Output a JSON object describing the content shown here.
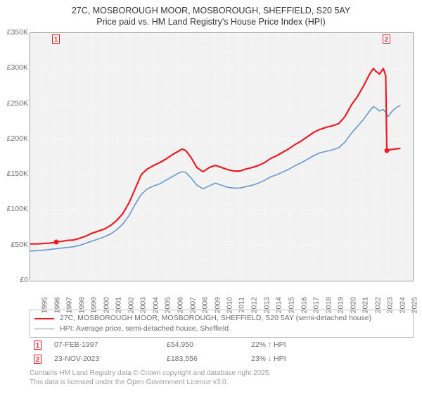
{
  "title_line1": "27C, MOSBOROUGH MOOR, MOSBOROUGH, SHEFFIELD, S20 5AY",
  "title_line2": "Price paid vs. HM Land Registry's House Price Index (HPI)",
  "chart": {
    "type": "line",
    "background_color": "#f2f2f2",
    "border_color": "#9b9b9b",
    "grid_color": "#ffffff",
    "grid_style": "dotted",
    "text_color": "#6e6e6e",
    "axis_fontsize": 10.5,
    "xlim": [
      1995,
      2026
    ],
    "ylim": [
      0,
      350000
    ],
    "y_ticks": [
      0,
      50000,
      100000,
      150000,
      200000,
      250000,
      300000,
      350000
    ],
    "y_tick_labels": [
      "£0",
      "£50K",
      "£100K",
      "£150K",
      "£200K",
      "£250K",
      "£300K",
      "£350K"
    ],
    "x_ticks": [
      1995,
      1996,
      1997,
      1998,
      1999,
      2000,
      2001,
      2002,
      2003,
      2004,
      2005,
      2006,
      2007,
      2008,
      2009,
      2010,
      2011,
      2012,
      2013,
      2014,
      2015,
      2016,
      2017,
      2018,
      2019,
      2020,
      2021,
      2022,
      2023,
      2024,
      2025,
      2026
    ],
    "series": [
      {
        "name": "price_paid",
        "color": "#ed1c24",
        "line_width": 2.2,
        "points": [
          [
            1995.0,
            52000
          ],
          [
            1995.5,
            52000
          ],
          [
            1996.0,
            52500
          ],
          [
            1996.5,
            53000
          ],
          [
            1997.0,
            54000
          ],
          [
            1997.11,
            54950
          ],
          [
            1997.5,
            55500
          ],
          [
            1998.0,
            57000
          ],
          [
            1998.5,
            57500
          ],
          [
            1999.0,
            60000
          ],
          [
            1999.5,
            63000
          ],
          [
            2000.0,
            67000
          ],
          [
            2000.5,
            70000
          ],
          [
            2001.0,
            73000
          ],
          [
            2001.5,
            78000
          ],
          [
            2002.0,
            85000
          ],
          [
            2002.5,
            95000
          ],
          [
            2003.0,
            110000
          ],
          [
            2003.5,
            130000
          ],
          [
            2004.0,
            150000
          ],
          [
            2004.5,
            158000
          ],
          [
            2005.0,
            163000
          ],
          [
            2005.5,
            167000
          ],
          [
            2006.0,
            172000
          ],
          [
            2006.5,
            178000
          ],
          [
            2007.0,
            183000
          ],
          [
            2007.3,
            186000
          ],
          [
            2007.6,
            184000
          ],
          [
            2008.0,
            175000
          ],
          [
            2008.5,
            160000
          ],
          [
            2009.0,
            154000
          ],
          [
            2009.5,
            160000
          ],
          [
            2010.0,
            163000
          ],
          [
            2010.5,
            160000
          ],
          [
            2011.0,
            157000
          ],
          [
            2011.5,
            155000
          ],
          [
            2012.0,
            155000
          ],
          [
            2012.5,
            158000
          ],
          [
            2013.0,
            160000
          ],
          [
            2013.5,
            163000
          ],
          [
            2014.0,
            167000
          ],
          [
            2014.5,
            173000
          ],
          [
            2015.0,
            177000
          ],
          [
            2015.5,
            182000
          ],
          [
            2016.0,
            187000
          ],
          [
            2016.5,
            193000
          ],
          [
            2017.0,
            198000
          ],
          [
            2017.5,
            204000
          ],
          [
            2018.0,
            210000
          ],
          [
            2018.5,
            214000
          ],
          [
            2019.0,
            217000
          ],
          [
            2019.5,
            219000
          ],
          [
            2020.0,
            222000
          ],
          [
            2020.5,
            232000
          ],
          [
            2021.0,
            248000
          ],
          [
            2021.5,
            260000
          ],
          [
            2022.0,
            275000
          ],
          [
            2022.5,
            292000
          ],
          [
            2022.8,
            300000
          ],
          [
            2023.0,
            296000
          ],
          [
            2023.3,
            292000
          ],
          [
            2023.6,
            300000
          ],
          [
            2023.8,
            290000
          ],
          [
            2023.89,
            183556
          ],
          [
            2024.1,
            185000
          ],
          [
            2024.5,
            186000
          ],
          [
            2025.0,
            187000
          ]
        ]
      },
      {
        "name": "hpi",
        "color": "#6699cc",
        "line_width": 1.6,
        "points": [
          [
            1995.0,
            42000
          ],
          [
            1995.5,
            42500
          ],
          [
            1996.0,
            43000
          ],
          [
            1996.5,
            44000
          ],
          [
            1997.0,
            45000
          ],
          [
            1997.5,
            46000
          ],
          [
            1998.0,
            47000
          ],
          [
            1998.5,
            48000
          ],
          [
            1999.0,
            50000
          ],
          [
            1999.5,
            53000
          ],
          [
            2000.0,
            56000
          ],
          [
            2000.5,
            59000
          ],
          [
            2001.0,
            62000
          ],
          [
            2001.5,
            66000
          ],
          [
            2002.0,
            72000
          ],
          [
            2002.5,
            80000
          ],
          [
            2003.0,
            92000
          ],
          [
            2003.5,
            108000
          ],
          [
            2004.0,
            122000
          ],
          [
            2004.5,
            130000
          ],
          [
            2005.0,
            134000
          ],
          [
            2005.5,
            137000
          ],
          [
            2006.0,
            142000
          ],
          [
            2006.5,
            147000
          ],
          [
            2007.0,
            152000
          ],
          [
            2007.3,
            154000
          ],
          [
            2007.6,
            153000
          ],
          [
            2008.0,
            146000
          ],
          [
            2008.5,
            135000
          ],
          [
            2009.0,
            130000
          ],
          [
            2009.5,
            134000
          ],
          [
            2010.0,
            138000
          ],
          [
            2010.5,
            135000
          ],
          [
            2011.0,
            132000
          ],
          [
            2011.5,
            131000
          ],
          [
            2012.0,
            131000
          ],
          [
            2012.5,
            133000
          ],
          [
            2013.0,
            135000
          ],
          [
            2013.5,
            138000
          ],
          [
            2014.0,
            142000
          ],
          [
            2014.5,
            147000
          ],
          [
            2015.0,
            150000
          ],
          [
            2015.5,
            154000
          ],
          [
            2016.0,
            158000
          ],
          [
            2016.5,
            163000
          ],
          [
            2017.0,
            167000
          ],
          [
            2017.5,
            172000
          ],
          [
            2018.0,
            177000
          ],
          [
            2018.5,
            181000
          ],
          [
            2019.0,
            183000
          ],
          [
            2019.5,
            185000
          ],
          [
            2020.0,
            188000
          ],
          [
            2020.5,
            196000
          ],
          [
            2021.0,
            208000
          ],
          [
            2021.5,
            218000
          ],
          [
            2022.0,
            228000
          ],
          [
            2022.5,
            240000
          ],
          [
            2022.8,
            246000
          ],
          [
            2023.0,
            244000
          ],
          [
            2023.3,
            240000
          ],
          [
            2023.6,
            242000
          ],
          [
            2023.8,
            238000
          ],
          [
            2024.0,
            232000
          ],
          [
            2024.3,
            239000
          ],
          [
            2024.6,
            244000
          ],
          [
            2025.0,
            248000
          ]
        ]
      }
    ],
    "markers": [
      {
        "n": "1",
        "x": 1997.11,
        "y": 54950
      },
      {
        "n": "2",
        "x": 2023.89,
        "y": 183556
      }
    ],
    "marker_color": "#ed1c24"
  },
  "legend": {
    "border_color": "#bdbdbd",
    "rows": [
      {
        "color": "#ed1c24",
        "label": "27C, MOSBOROUGH MOOR, MOSBOROUGH, SHEFFIELD, S20 5AY (semi-detached house)"
      },
      {
        "color": "#6699cc",
        "label": "HPI: Average price, semi-detached house, Sheffield"
      }
    ]
  },
  "events": [
    {
      "n": "1",
      "date": "07-FEB-1997",
      "price": "£54,950",
      "delta": "22% ↑ HPI"
    },
    {
      "n": "2",
      "date": "23-NOV-2023",
      "price": "£183,556",
      "delta": "23% ↓ HPI"
    }
  ],
  "footer_line1": "Contains HM Land Registry data © Crown copyright and database right 2025.",
  "footer_line2": "This data is licensed under the Open Government Licence v3.0."
}
